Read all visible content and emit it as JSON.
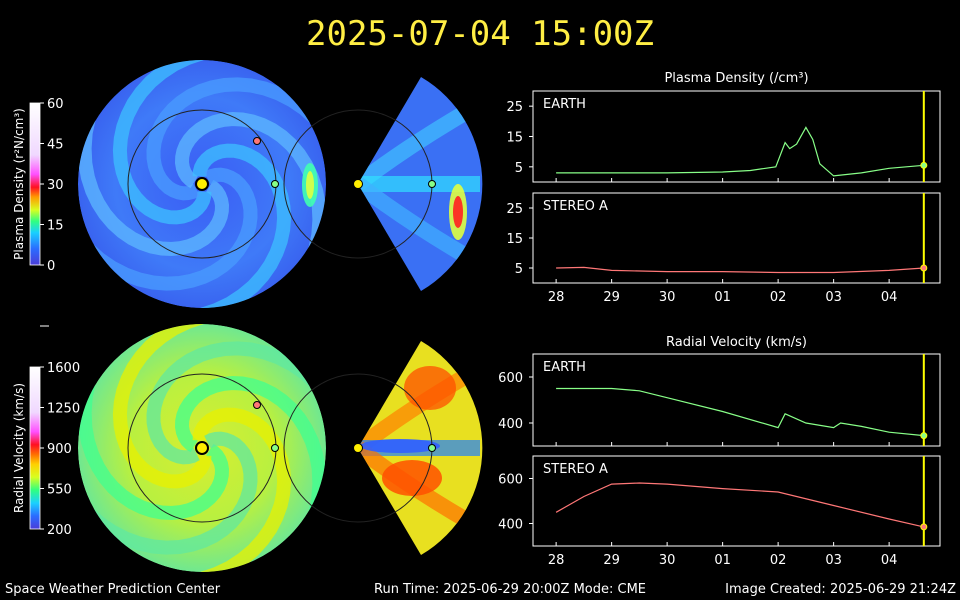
{
  "title": "2025-07-04 15:00Z",
  "footer": {
    "left": "Space Weather Prediction Center",
    "center": "Run Time: 2025-06-29 20:00Z  Mode: CME",
    "right": "Image Created: 2025-06-29 21:24Z"
  },
  "colors": {
    "title": "#ffee44",
    "earth": "#88ff88",
    "stereo_a": "#ff7777",
    "time_marker": "#ffff00"
  },
  "colorbars": [
    {
      "label": "Plasma Density (r²N/cm³)",
      "range": [
        0,
        60
      ],
      "ticks": [
        "60",
        "45",
        "30",
        "15",
        "0"
      ]
    },
    {
      "label": "Radial Velocity (km/s)",
      "range": [
        200,
        1600
      ],
      "ticks": [
        "1600",
        "1250",
        "900",
        "550",
        "200"
      ]
    }
  ],
  "chart_data": [
    {
      "type": "line",
      "title": "Plasma Density (/cm³)",
      "x_ticks": [
        "28",
        "29",
        "30",
        "01",
        "02",
        "03",
        "04"
      ],
      "current_time": "2025-07-04 15:00Z",
      "panels": [
        {
          "name": "EARTH",
          "ylim": [
            0,
            30
          ],
          "y_ticks": [
            "25",
            "15",
            "5"
          ],
          "x": [
            "06-28 00Z",
            "06-29 00Z",
            "06-30 00Z",
            "07-01 00Z",
            "07-01 12Z",
            "07-01 23Z",
            "07-02 03Z",
            "07-02 05Z",
            "07-02 08Z",
            "07-02 12Z",
            "07-02 15Z",
            "07-02 18Z",
            "07-03 00Z",
            "07-03 06Z",
            "07-03 12Z",
            "07-04 00Z",
            "07-04 15Z"
          ],
          "values": [
            3,
            3,
            3,
            3.3,
            3.8,
            5,
            13,
            11,
            12.5,
            18,
            14,
            6,
            2,
            2.5,
            3,
            4.5,
            5.5
          ]
        },
        {
          "name": "STEREO A",
          "ylim": [
            0,
            30
          ],
          "y_ticks": [
            "25",
            "15",
            "5"
          ],
          "x": [
            "06-28 00Z",
            "06-28 12Z",
            "06-29 00Z",
            "06-30 00Z",
            "07-01 00Z",
            "07-02 00Z",
            "07-03 00Z",
            "07-04 00Z",
            "07-04 15Z"
          ],
          "values": [
            5,
            5.2,
            4.2,
            3.8,
            3.8,
            3.5,
            3.5,
            4.2,
            5
          ]
        }
      ]
    },
    {
      "type": "line",
      "title": "Radial Velocity (km/s)",
      "x_ticks": [
        "28",
        "29",
        "30",
        "01",
        "02",
        "03",
        "04"
      ],
      "current_time": "2025-07-04 15:00Z",
      "panels": [
        {
          "name": "EARTH",
          "ylim": [
            300,
            700
          ],
          "y_ticks": [
            "600",
            "400"
          ],
          "x": [
            "06-28 00Z",
            "06-29 00Z",
            "06-29 12Z",
            "06-30 00Z",
            "07-01 00Z",
            "07-02 00Z",
            "07-02 03Z",
            "07-02 12Z",
            "07-03 00Z",
            "07-03 03Z",
            "07-03 12Z",
            "07-04 00Z",
            "07-04 15Z"
          ],
          "values": [
            550,
            550,
            540,
            510,
            450,
            380,
            440,
            400,
            380,
            400,
            385,
            360,
            345
          ]
        },
        {
          "name": "STEREO A",
          "ylim": [
            300,
            700
          ],
          "y_ticks": [
            "600",
            "400"
          ],
          "x": [
            "06-28 00Z",
            "06-28 12Z",
            "06-29 00Z",
            "06-29 12Z",
            "06-30 00Z",
            "07-01 00Z",
            "07-02 00Z",
            "07-03 00Z",
            "07-04 00Z",
            "07-04 15Z"
          ],
          "values": [
            450,
            520,
            575,
            580,
            575,
            555,
            540,
            480,
            420,
            385
          ]
        }
      ]
    }
  ]
}
